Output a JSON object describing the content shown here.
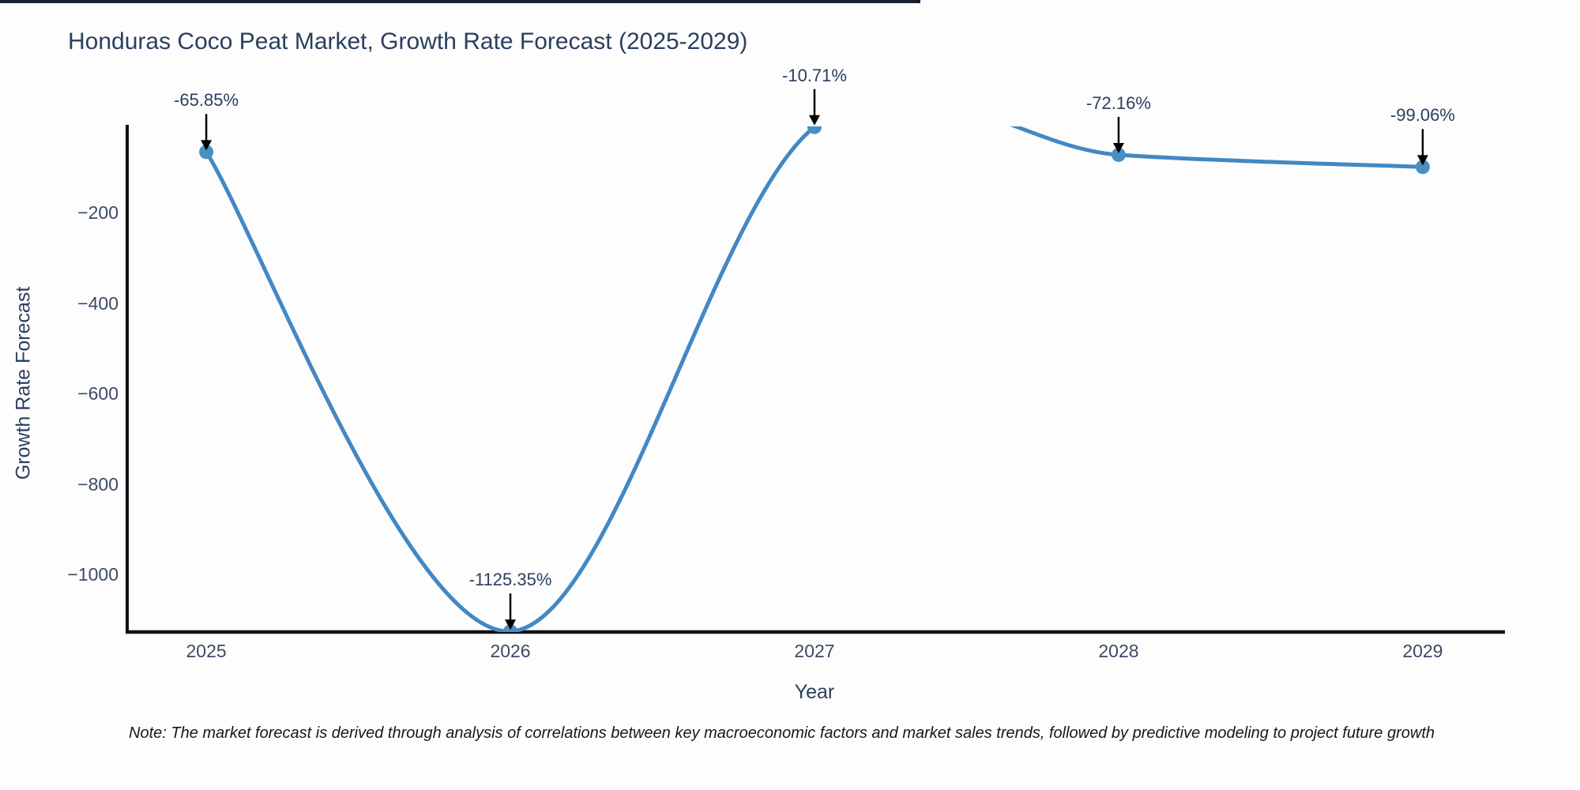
{
  "page": {
    "top_bar_color": "#16202e",
    "background": "#fdfdfd"
  },
  "chart_data": {
    "type": "line",
    "title": "Honduras Coco Peat Market, Growth Rate Forecast (2025-2029)",
    "xlabel": "Year",
    "ylabel": "Growth Rate Forecast",
    "series": [
      {
        "name": "Growth Rate Forecast",
        "x": [
          2025,
          2026,
          2027,
          2028,
          2029
        ],
        "y": [
          -65.85,
          -1125.35,
          -10.71,
          -72.16,
          -99.06
        ]
      }
    ],
    "line_shape": "spline",
    "line_color": "#4288c5",
    "marker_color": "#4a8fc2",
    "axis_line_color": "#111111",
    "text_color": "#2a3f5f",
    "tick_color": "#3c4a63",
    "arrow_color": "#000000",
    "grid": false,
    "legend_position": "none",
    "xlim": [
      2024.74,
      2029.26
    ],
    "ylim": [
      -1126.7,
      -9.4
    ],
    "xticks": [
      {
        "value": 2025,
        "label": "2025"
      },
      {
        "value": 2026,
        "label": "2026"
      },
      {
        "value": 2027,
        "label": "2027"
      },
      {
        "value": 2028,
        "label": "2028"
      },
      {
        "value": 2029,
        "label": "2029"
      }
    ],
    "yticks": [
      {
        "value": -200,
        "label": "−200"
      },
      {
        "value": -400,
        "label": "−400"
      },
      {
        "value": -600,
        "label": "−600"
      },
      {
        "value": -800,
        "label": "−800"
      },
      {
        "value": -1000,
        "label": "−1000"
      }
    ],
    "annotations": [
      {
        "x": 2025,
        "y": -65.85,
        "text": "-65.85%"
      },
      {
        "x": 2026,
        "y": -1125.35,
        "text": "-1125.35%"
      },
      {
        "x": 2027,
        "y": -10.71,
        "text": "-10.71%"
      },
      {
        "x": 2028,
        "y": -72.16,
        "text": "-72.16%"
      },
      {
        "x": 2029,
        "y": -99.06,
        "text": "-99.06%"
      }
    ]
  },
  "note": {
    "text": "Note: The market forecast is derived through analysis of correlations between key macroeconomic factors and market sales trends, followed by predictive modeling to project future growth"
  }
}
